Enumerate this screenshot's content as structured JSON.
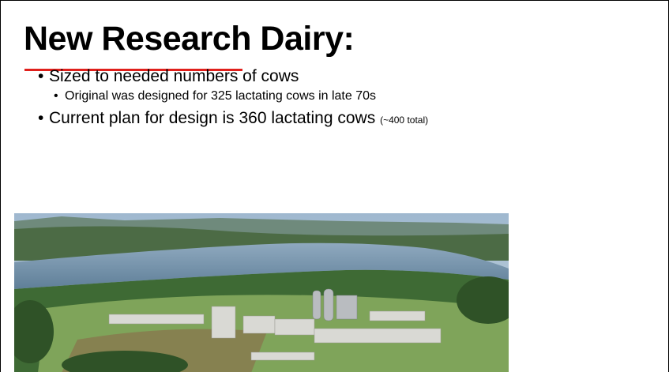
{
  "slide": {
    "title": "New Research Dairy:",
    "bullets": [
      {
        "text": "Sized to needed numbers of cows",
        "sub": [
          "Original was designed for 325 lactating cows in late 70s"
        ]
      },
      {
        "text": "Current plan for design is 360 lactating cows",
        "note": "(~400 total)"
      }
    ]
  }
}
